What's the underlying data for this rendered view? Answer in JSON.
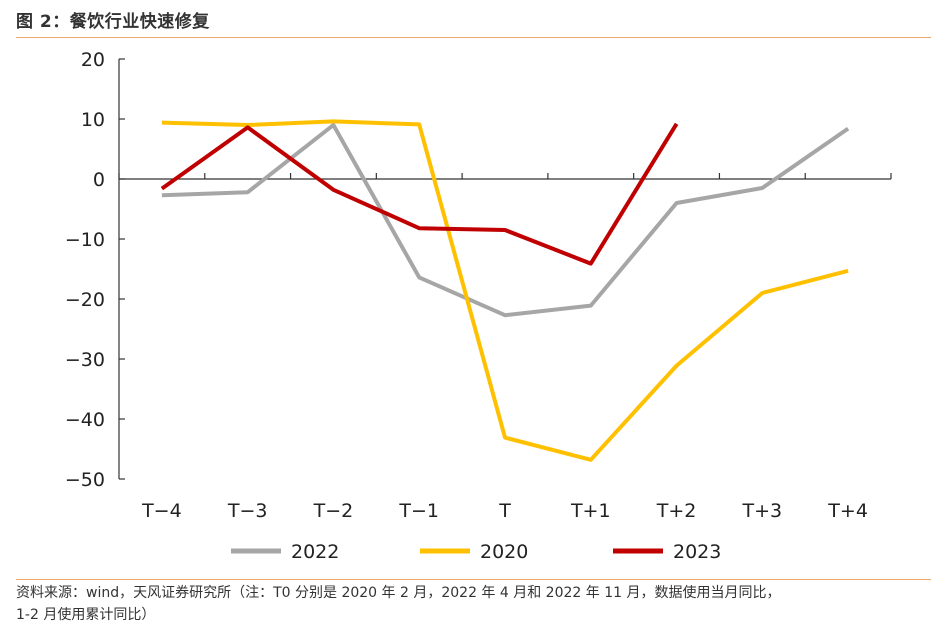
{
  "figure": {
    "title": "图 2：餐饮行业快速修复",
    "source_line1": "资料来源：wind，天风证券研究所（注：T0 分别是 2020 年 2 月，2022 年 4 月和 2022 年 11 月，数据使用当月同比，",
    "source_line2": "1-2 月使用累计同比）"
  },
  "chart_data": {
    "type": "line",
    "title": "",
    "xlabel": "",
    "ylabel": "",
    "categories": [
      "T−4",
      "T−3",
      "T−2",
      "T−1",
      "T",
      "T+1",
      "T+2",
      "T+3",
      "T+4"
    ],
    "ylim": [
      -50,
      20
    ],
    "yticks": [
      20,
      10,
      0,
      -10,
      -20,
      -30,
      -40,
      -50
    ],
    "ytick_labels": [
      "20",
      "10",
      "0",
      "−10",
      "−20",
      "−30",
      "−40",
      "−50"
    ],
    "grid": false,
    "legend_position": "bottom",
    "series": [
      {
        "name": "2022",
        "color": "#a6a6a6",
        "values": [
          -2.7,
          -2.2,
          9.0,
          -16.4,
          -22.7,
          -21.1,
          -4.0,
          -1.5,
          8.4
        ]
      },
      {
        "name": "2020",
        "color": "#ffc000",
        "values": [
          9.4,
          9.0,
          9.6,
          9.1,
          -43.1,
          -46.8,
          -31.1,
          -19.0,
          -15.3
        ]
      },
      {
        "name": "2023",
        "color": "#c00000",
        "values": [
          -1.6,
          8.6,
          -1.8,
          -8.2,
          -8.5,
          -14.1,
          9.2,
          null,
          null
        ]
      }
    ]
  }
}
